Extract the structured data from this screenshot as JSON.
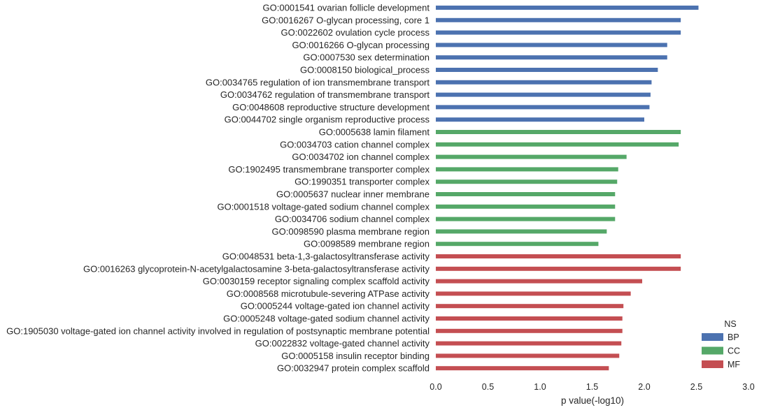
{
  "chart_data": {
    "type": "bar",
    "orientation": "horizontal",
    "xlabel": "p value(-log10)",
    "ylabel": "",
    "xlim": [
      0,
      3.0
    ],
    "xticks": [
      "0.0",
      "0.5",
      "1.0",
      "1.5",
      "2.0",
      "2.5",
      "3.0"
    ],
    "grid": false,
    "legend": {
      "title": "NS",
      "placement": "bottom-right",
      "entries": [
        {
          "name": "BP",
          "color": "#4c72b0"
        },
        {
          "name": "CC",
          "color": "#55a868"
        },
        {
          "name": "MF",
          "color": "#c44e52"
        }
      ]
    },
    "bars": [
      {
        "label": "GO:0001541 ovarian follicle development",
        "value": 2.52,
        "ns": "BP"
      },
      {
        "label": "GO:0016267 O-glycan processing, core 1",
        "value": 2.35,
        "ns": "BP"
      },
      {
        "label": "GO:0022602 ovulation cycle process",
        "value": 2.35,
        "ns": "BP"
      },
      {
        "label": "GO:0016266 O-glycan processing",
        "value": 2.22,
        "ns": "BP"
      },
      {
        "label": "GO:0007530 sex determination",
        "value": 2.22,
        "ns": "BP"
      },
      {
        "label": "GO:0008150 biological_process",
        "value": 2.13,
        "ns": "BP"
      },
      {
        "label": "GO:0034765 regulation of ion transmembrane transport",
        "value": 2.07,
        "ns": "BP"
      },
      {
        "label": "GO:0034762 regulation of transmembrane transport",
        "value": 2.06,
        "ns": "BP"
      },
      {
        "label": "GO:0048608 reproductive structure development",
        "value": 2.05,
        "ns": "BP"
      },
      {
        "label": "GO:0044702 single organism reproductive process",
        "value": 2.0,
        "ns": "BP"
      },
      {
        "label": "GO:0005638 lamin filament",
        "value": 2.35,
        "ns": "CC"
      },
      {
        "label": "GO:0034703 cation channel complex",
        "value": 2.33,
        "ns": "CC"
      },
      {
        "label": "GO:0034702 ion channel complex",
        "value": 1.83,
        "ns": "CC"
      },
      {
        "label": "GO:1902495 transmembrane transporter complex",
        "value": 1.75,
        "ns": "CC"
      },
      {
        "label": "GO:1990351 transporter complex",
        "value": 1.74,
        "ns": "CC"
      },
      {
        "label": "GO:0005637 nuclear inner membrane",
        "value": 1.72,
        "ns": "CC"
      },
      {
        "label": "GO:0001518 voltage-gated sodium channel complex",
        "value": 1.72,
        "ns": "CC"
      },
      {
        "label": "GO:0034706 sodium channel complex",
        "value": 1.72,
        "ns": "CC"
      },
      {
        "label": "GO:0098590 plasma membrane region",
        "value": 1.64,
        "ns": "CC"
      },
      {
        "label": "GO:0098589 membrane region",
        "value": 1.56,
        "ns": "CC"
      },
      {
        "label": "GO:0048531 beta-1,3-galactosyltransferase activity",
        "value": 2.35,
        "ns": "MF"
      },
      {
        "label": "GO:0016263 glycoprotein-N-acetylgalactosamine 3-beta-galactosyltransferase activity",
        "value": 2.35,
        "ns": "MF"
      },
      {
        "label": "GO:0030159 receptor signaling complex scaffold activity",
        "value": 1.98,
        "ns": "MF"
      },
      {
        "label": "GO:0008568 microtubule-severing ATPase activity",
        "value": 1.87,
        "ns": "MF"
      },
      {
        "label": "GO:0005244 voltage-gated ion channel activity",
        "value": 1.8,
        "ns": "MF"
      },
      {
        "label": "GO:0005248 voltage-gated sodium channel activity",
        "value": 1.79,
        "ns": "MF"
      },
      {
        "label": "GO:1905030 voltage-gated ion channel activity involved in regulation of postsynaptic membrane potential",
        "value": 1.79,
        "ns": "MF"
      },
      {
        "label": "GO:0022832 voltage-gated channel activity",
        "value": 1.78,
        "ns": "MF"
      },
      {
        "label": "GO:0005158 insulin receptor binding",
        "value": 1.76,
        "ns": "MF"
      },
      {
        "label": "GO:0032947 protein complex scaffold",
        "value": 1.66,
        "ns": "MF"
      }
    ]
  }
}
